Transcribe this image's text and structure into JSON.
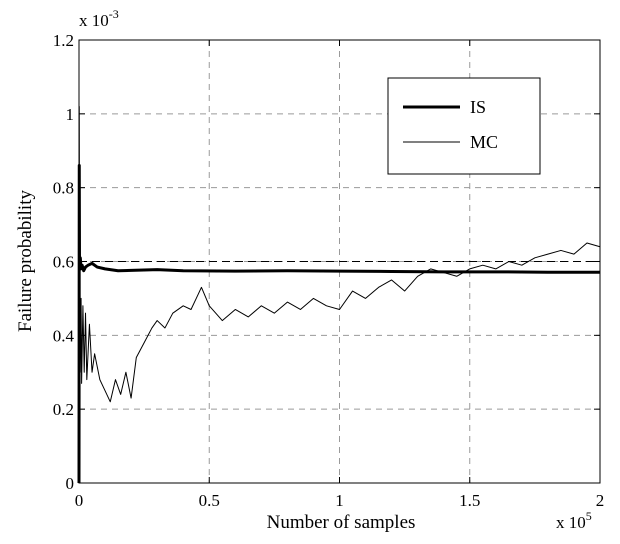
{
  "chart_data": {
    "type": "line",
    "xlabel": "Number of samples",
    "ylabel": "Failure probability",
    "x_multiplier": {
      "base": "x 10",
      "exponent": "5"
    },
    "y_multiplier": {
      "base": "x 10",
      "exponent": "-3"
    },
    "xlim": [
      0,
      2
    ],
    "ylim": [
      0,
      1.2
    ],
    "x_ticks": [
      "0",
      "0.5",
      "1",
      "1.5",
      "2"
    ],
    "y_ticks": [
      "0",
      "0.2",
      "0.4",
      "0.6",
      "0.8",
      "1",
      "1.2"
    ],
    "reference_line": 0.6,
    "grid": true,
    "legend_position": "top-right",
    "series": [
      {
        "name": "IS",
        "style": "thick",
        "color": "#000000",
        "x": [
          0.0,
          0.001,
          0.002,
          0.003,
          0.005,
          0.008,
          0.012,
          0.018,
          0.025,
          0.035,
          0.05,
          0.07,
          0.1,
          0.15,
          0.2,
          0.3,
          0.4,
          0.6,
          0.8,
          1.0,
          1.2,
          1.4,
          1.6,
          1.8,
          2.0
        ],
        "y": [
          0.0,
          0.86,
          0.58,
          0.6,
          0.61,
          0.58,
          0.59,
          0.575,
          0.585,
          0.59,
          0.595,
          0.585,
          0.58,
          0.575,
          0.576,
          0.578,
          0.575,
          0.574,
          0.575,
          0.574,
          0.573,
          0.572,
          0.572,
          0.571,
          0.571
        ]
      },
      {
        "name": "MC",
        "style": "thin",
        "color": "#000000",
        "x": [
          0.0,
          0.001,
          0.002,
          0.003,
          0.005,
          0.008,
          0.01,
          0.015,
          0.02,
          0.025,
          0.03,
          0.04,
          0.05,
          0.06,
          0.08,
          0.1,
          0.12,
          0.14,
          0.16,
          0.18,
          0.2,
          0.22,
          0.25,
          0.28,
          0.3,
          0.33,
          0.36,
          0.4,
          0.43,
          0.45,
          0.47,
          0.5,
          0.55,
          0.6,
          0.65,
          0.7,
          0.75,
          0.8,
          0.85,
          0.9,
          0.95,
          1.0,
          1.05,
          1.1,
          1.15,
          1.2,
          1.25,
          1.3,
          1.35,
          1.4,
          1.45,
          1.5,
          1.55,
          1.6,
          1.65,
          1.7,
          1.75,
          1.8,
          1.85,
          1.9,
          1.95,
          2.0
        ],
        "y": [
          0.0,
          1.02,
          0.55,
          0.75,
          0.3,
          0.5,
          0.27,
          0.48,
          0.3,
          0.46,
          0.28,
          0.43,
          0.3,
          0.35,
          0.28,
          0.25,
          0.22,
          0.28,
          0.24,
          0.3,
          0.23,
          0.34,
          0.38,
          0.42,
          0.44,
          0.42,
          0.46,
          0.48,
          0.47,
          0.5,
          0.53,
          0.48,
          0.44,
          0.47,
          0.45,
          0.48,
          0.46,
          0.49,
          0.47,
          0.5,
          0.48,
          0.47,
          0.52,
          0.5,
          0.53,
          0.55,
          0.52,
          0.56,
          0.58,
          0.57,
          0.56,
          0.58,
          0.59,
          0.58,
          0.6,
          0.59,
          0.61,
          0.62,
          0.63,
          0.62,
          0.65,
          0.64
        ]
      }
    ]
  }
}
